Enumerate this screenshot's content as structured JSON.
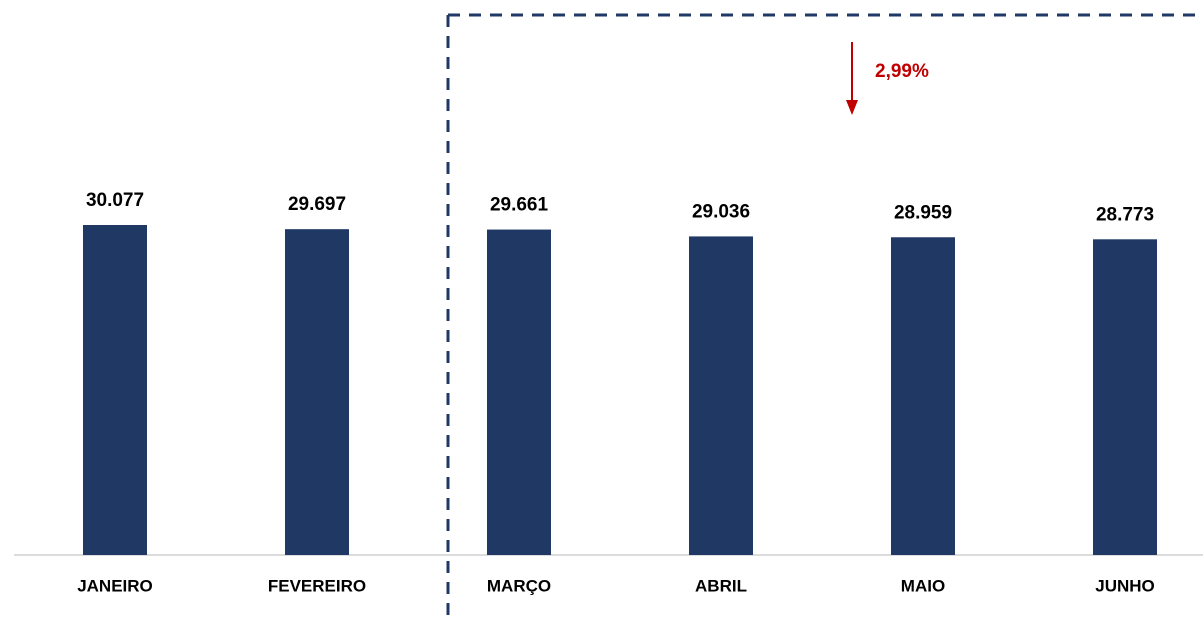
{
  "chart_data": {
    "type": "bar",
    "categories": [
      "JANEIRO",
      "FEVEREIRO",
      "MARÇO",
      "ABRIL",
      "MAIO",
      "JUNHO"
    ],
    "values": [
      30077,
      29697,
      29661,
      29036,
      28959,
      28773
    ],
    "value_labels": [
      "30.077",
      "29.697",
      "29.661",
      "29.036",
      "28.959",
      "28.773"
    ],
    "color": "#203864",
    "annotation": "2,99%"
  }
}
